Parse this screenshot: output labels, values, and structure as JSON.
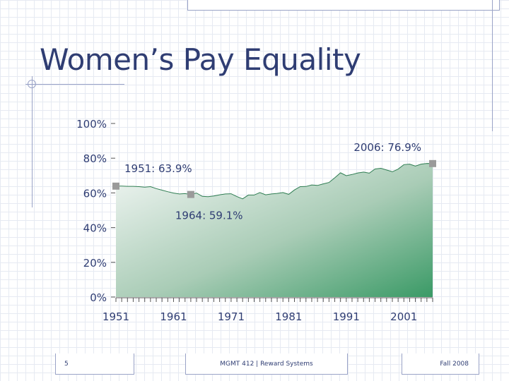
{
  "slide": {
    "title": "Women’s Pay Equality",
    "footer_left": "5",
    "footer_center": "MGMT 412 | Reward Systems",
    "footer_right": "Fall 2008"
  },
  "colors": {
    "title": "#2f3d73",
    "text": "#2f3d73",
    "area_top": "#3a9a66",
    "area_light": "#f3f7f5",
    "marker": "#9a9a9a",
    "frame": "#9aa3c7"
  },
  "chart_data": {
    "type": "area",
    "title": "",
    "xlabel": "",
    "ylabel": "",
    "ylim": [
      0,
      100
    ],
    "xlim": [
      1951,
      2006
    ],
    "y_ticks": [
      "0%",
      "20%",
      "40%",
      "60%",
      "80%",
      "100%"
    ],
    "x_ticks": [
      "1951",
      "1961",
      "1971",
      "1981",
      "1991",
      "2001"
    ],
    "x": [
      1951,
      1952,
      1953,
      1954,
      1955,
      1956,
      1957,
      1958,
      1959,
      1960,
      1961,
      1962,
      1963,
      1964,
      1965,
      1966,
      1967,
      1968,
      1969,
      1970,
      1971,
      1972,
      1973,
      1974,
      1975,
      1976,
      1977,
      1978,
      1979,
      1980,
      1981,
      1982,
      1983,
      1984,
      1985,
      1986,
      1987,
      1988,
      1989,
      1990,
      1991,
      1992,
      1993,
      1994,
      1995,
      1996,
      1997,
      1998,
      1999,
      2000,
      2001,
      2002,
      2003,
      2004,
      2005,
      2006
    ],
    "series": [
      {
        "values": [
          63.9,
          63.9,
          63.8,
          63.8,
          63.6,
          63.3,
          63.6,
          62.5,
          61.6,
          60.7,
          59.9,
          59.4,
          59.6,
          59.1,
          59.9,
          58.0,
          57.8,
          58.2,
          58.9,
          59.4,
          59.5,
          57.9,
          56.6,
          58.8,
          58.8,
          60.2,
          58.9,
          59.4,
          59.7,
          60.2,
          59.2,
          61.7,
          63.6,
          63.7,
          64.6,
          64.3,
          65.2,
          66.0,
          68.7,
          71.6,
          69.9,
          70.6,
          71.5,
          72.0,
          71.4,
          73.8,
          74.2,
          73.2,
          72.2,
          73.7,
          76.3,
          76.6,
          75.5,
          76.6,
          77.0,
          76.9
        ]
      }
    ],
    "annotations": [
      {
        "label": "1951: 63.9%",
        "x": 1951,
        "y": 63.9
      },
      {
        "label": "1964: 59.1%",
        "x": 1964,
        "y": 59.1
      },
      {
        "label": "2006: 76.9%",
        "x": 2006,
        "y": 76.9
      }
    ]
  }
}
